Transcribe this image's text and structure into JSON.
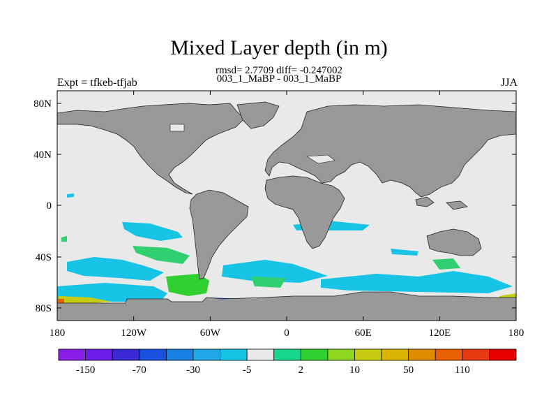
{
  "header": {
    "title": "Mixed Layer depth (in m)",
    "stats": "rmsd= 2.7709 diff= -0.247002",
    "comparison": "003_1_MaBP - 003_1_MaBP",
    "experiment": "Expt = tfkeb-tfjab",
    "season": "JJA"
  },
  "axes": {
    "lon_ticks": [
      "180",
      "120W",
      "60W",
      "0",
      "60E",
      "120E",
      "180"
    ],
    "lat_ticks": [
      "80N",
      "40N",
      "0",
      "40S",
      "80S"
    ]
  },
  "colorbar": {
    "labels": [
      "-150",
      "-70",
      "-30",
      "-5",
      "2",
      "10",
      "50",
      "110"
    ],
    "colors": [
      "#8a1ee6",
      "#6a1ee6",
      "#3a2ad6",
      "#1a50e0",
      "#1a80e6",
      "#20a8e6",
      "#18c4e6",
      "#e9e9e9",
      "#18d68a",
      "#30d030",
      "#90d820",
      "#c8cc10",
      "#d8b400",
      "#e08c00",
      "#e86000",
      "#e83a10",
      "#e80000"
    ]
  },
  "map": {
    "ocean_color": "#e9e9e9",
    "land_color": "#999999"
  }
}
